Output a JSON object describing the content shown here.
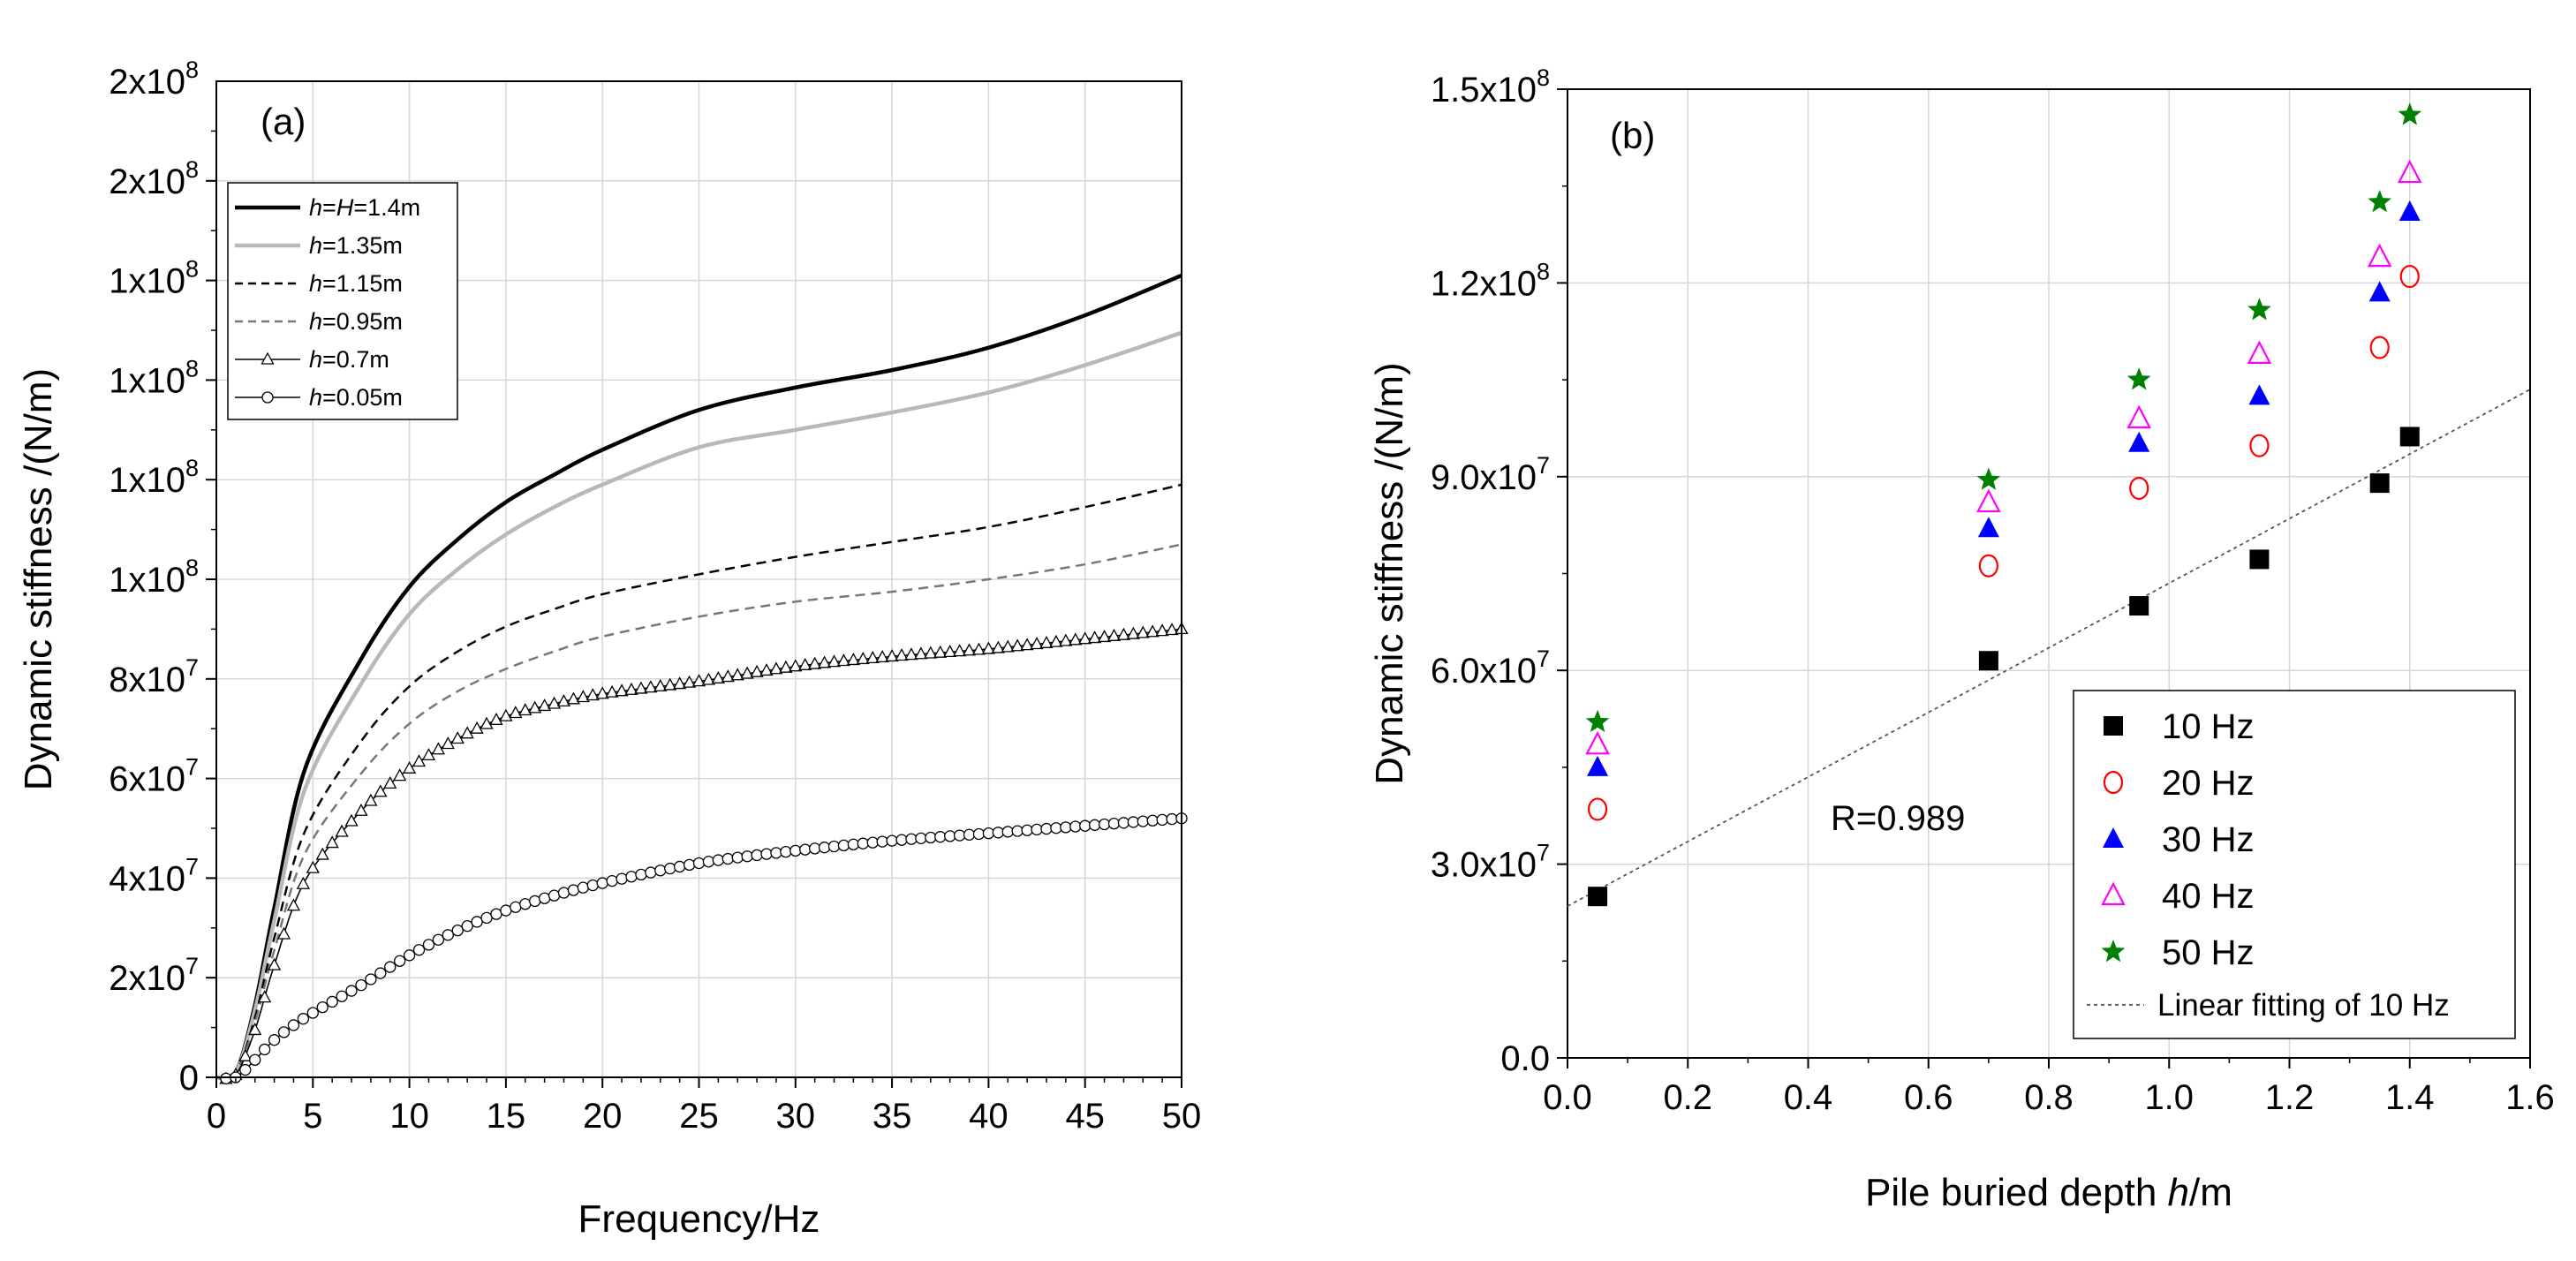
{
  "chart_data": [
    {
      "type": "line",
      "panel_label": "(a)",
      "xlabel": "Frequency/Hz",
      "ylabel": "Dynamic stiffness /(N/m)",
      "xlim": [
        0,
        50
      ],
      "ylim": [
        0,
        200000000
      ],
      "grid": true,
      "x_ticks": [
        "0",
        "5",
        "10",
        "15",
        "20",
        "25",
        "30",
        "35",
        "40",
        "45",
        "50"
      ],
      "y_ticks": [
        {
          "value": 0,
          "base": "0",
          "exp": ""
        },
        {
          "value": 20000000,
          "base": "2x10",
          "exp": "7"
        },
        {
          "value": 40000000,
          "base": "4x10",
          "exp": "7"
        },
        {
          "value": 60000000,
          "base": "6x10",
          "exp": "7"
        },
        {
          "value": 80000000,
          "base": "8x10",
          "exp": "7"
        },
        {
          "value": 100000000,
          "base": "1x10",
          "exp": "8"
        },
        {
          "value": 120000000,
          "base": "1x10",
          "exp": "8"
        },
        {
          "value": 140000000,
          "base": "1x10",
          "exp": "8"
        },
        {
          "value": 160000000,
          "base": "1x10",
          "exp": "8"
        },
        {
          "value": 180000000,
          "base": "2x10",
          "exp": "8"
        }
      ],
      "legend_placement": "top-left",
      "x": [
        0,
        1,
        2,
        3,
        4.6,
        7.5,
        10,
        12.5,
        15,
        17.5,
        20,
        25,
        30,
        35,
        40,
        45,
        50
      ],
      "series": [
        {
          "name": "h=H=1.4m",
          "var": "h",
          "eq": "=",
          "var2": "H",
          "suffix": "=1.4m",
          "color": "#000000",
          "style": "solid",
          "width": 4.5,
          "marker": "none",
          "values": [
            0,
            900000.0,
            14500000.0,
            34000000.0,
            62000000.0,
            84000000.0,
            98500000.0,
            108000000.0,
            115500000.0,
            121000000.0,
            126000000.0,
            134000000.0,
            138500000.0,
            142000000.0,
            146500000.0,
            153000000.0,
            161000000.0
          ]
        },
        {
          "name": "h=1.35m",
          "var": "h",
          "eq": "",
          "var2": "",
          "suffix": "=1.35m",
          "color": "#b8b8b8",
          "style": "solid",
          "width": 4.5,
          "marker": "none",
          "values": [
            0,
            800000.0,
            13500000.0,
            31500000.0,
            58000000.0,
            79000000.0,
            93000000.0,
            102000000.0,
            109000000.0,
            114500000.0,
            119000000.0,
            126500000.0,
            130000000.0,
            133500000.0,
            137500000.0,
            143000000.0,
            149500000.0
          ]
        },
        {
          "name": "h=1.15m",
          "var": "h",
          "eq": "",
          "var2": "",
          "suffix": "=1.15m",
          "color": "#000000",
          "style": "dashed",
          "width": 2.5,
          "marker": "none",
          "values": [
            0,
            700000.0,
            12000000.0,
            28000000.0,
            49500000.0,
            67500000.0,
            78500000.0,
            85500000.0,
            90500000.0,
            94000000.0,
            97000000.0,
            101000000.0,
            104500000.0,
            107500000.0,
            110500000.0,
            114500000.0,
            119000000.0
          ]
        },
        {
          "name": "h=0.95m",
          "var": "h",
          "eq": "",
          "var2": "",
          "suffix": "=0.95m",
          "color": "#777777",
          "style": "dashed",
          "width": 2.5,
          "marker": "none",
          "values": [
            0,
            600000.0,
            11000000.0,
            25500000.0,
            45000000.0,
            61000000.0,
            71000000.0,
            77500000.0,
            82000000.0,
            85500000.0,
            88500000.0,
            92500000.0,
            95500000.0,
            97500000.0,
            100000000.0,
            103000000.0,
            107000000.0
          ]
        },
        {
          "name": "h=0.7m",
          "var": "h",
          "eq": "",
          "var2": "",
          "suffix": "=0.7m",
          "color": "#000000",
          "style": "solid",
          "width": 1.6,
          "marker": "triangle",
          "values": [
            0,
            500000.0,
            9500000.0,
            22500000.0,
            39500000.0,
            53500000.0,
            62000000.0,
            68000000.0,
            72500000.0,
            75000000.0,
            77000000.0,
            79500000.0,
            82500000.0,
            84500000.0,
            86000000.0,
            88000000.0,
            90000000.0
          ]
        },
        {
          "name": "h=0.05m",
          "var": "h",
          "eq": "",
          "var2": "",
          "suffix": "=0.05m",
          "color": "#000000",
          "style": "solid",
          "width": 1.6,
          "marker": "circle",
          "values": [
            0,
            0,
            3500000.0,
            7500000.0,
            12000000.0,
            18500000.0,
            24500000.0,
            29500000.0,
            33500000.0,
            36500000.0,
            39000000.0,
            43000000.0,
            45500000.0,
            47500000.0,
            49000000.0,
            50500000.0,
            52000000.0
          ]
        }
      ]
    },
    {
      "type": "scatter",
      "panel_label": "(b)",
      "xlabel_prefix": "Pile buried depth ",
      "xlabel_var": "h",
      "xlabel_suffix": "/m",
      "ylabel": "Dynamic stiffness /(N/m)",
      "xlim": [
        0,
        1.6
      ],
      "ylim": [
        0,
        150000000
      ],
      "grid": true,
      "x_ticks": [
        "0.0",
        "0.2",
        "0.4",
        "0.6",
        "0.8",
        "1.0",
        "1.2",
        "1.4",
        "1.6"
      ],
      "y_ticks": [
        {
          "value": 0,
          "base": "0.0",
          "exp": ""
        },
        {
          "value": 30000000,
          "base": "3.0x10",
          "exp": "7"
        },
        {
          "value": 60000000,
          "base": "6.0x10",
          "exp": "7"
        },
        {
          "value": 90000000,
          "base": "9.0x10",
          "exp": "7"
        },
        {
          "value": 120000000,
          "base": "1.2x10",
          "exp": "8"
        },
        {
          "value": 150000000,
          "base": "1.5x10",
          "exp": "8"
        }
      ],
      "x": [
        0.05,
        0.7,
        0.95,
        1.15,
        1.35,
        1.4
      ],
      "legend_placement": "bottom-right",
      "series": [
        {
          "name": "10 Hz",
          "marker": "square-filled",
          "color": "#000000",
          "values": [
            25000000.0,
            61500000.0,
            70000000.0,
            77200000.0,
            89000000.0,
            96200000.0
          ]
        },
        {
          "name": "20 Hz",
          "marker": "circle-open",
          "color": "#ff0000",
          "values": [
            38500000.0,
            76200000.0,
            88200000.0,
            94800000.0,
            110000000.0,
            121000000.0
          ]
        },
        {
          "name": "30 Hz",
          "marker": "triangle-filled",
          "color": "#0000ff",
          "values": [
            45000000.0,
            82000000.0,
            95200000.0,
            102500000.0,
            118500000.0,
            131000000.0
          ]
        },
        {
          "name": "40 Hz",
          "marker": "triangle-open",
          "color": "#ff00ff",
          "values": [
            48500000.0,
            86000000.0,
            99000000.0,
            109000000.0,
            124000000.0,
            137000000.0
          ]
        },
        {
          "name": "50 Hz",
          "marker": "star-filled",
          "color": "#008000",
          "values": [
            52000000.0,
            89500000.0,
            105000000.0,
            115800000.0,
            132500000.0,
            146000000.0
          ]
        }
      ],
      "fit": {
        "name": "Linear fitting of 10 Hz",
        "color": "#555555",
        "style": "dotted",
        "x": [
          0,
          1.6
        ],
        "values": [
          23500000.0,
          103500000.0
        ]
      },
      "annotation": "R=0.989"
    }
  ]
}
